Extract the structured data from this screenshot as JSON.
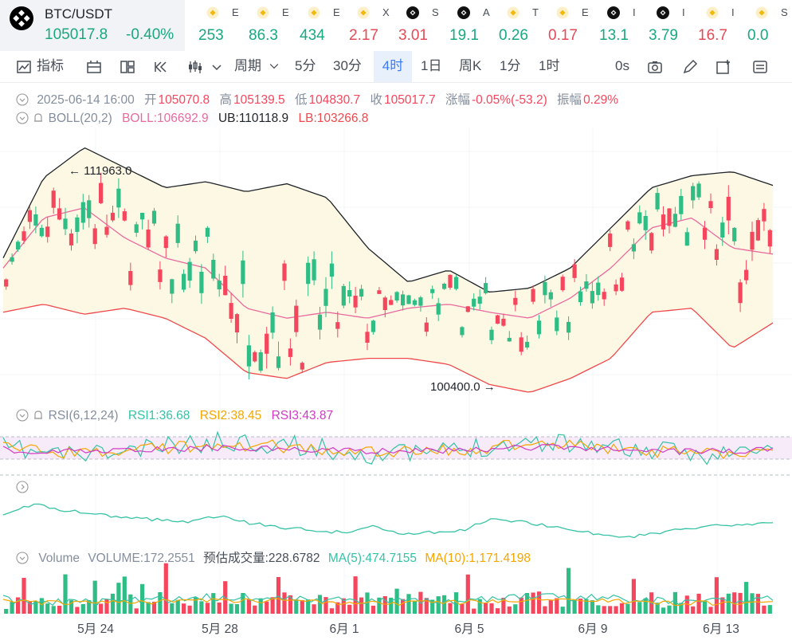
{
  "main_ticker": {
    "symbol": "BTC/USDT",
    "price": "105017.8",
    "change": "-0.40%"
  },
  "tickers": [
    {
      "icon": "bnb-coin-icon",
      "name": "E",
      "price": "253",
      "dir": "up"
    },
    {
      "icon": "bnb-coin-icon",
      "name": "E",
      "price": "86.3",
      "dir": "up"
    },
    {
      "icon": "bnb-coin-icon",
      "name": "E",
      "price": "434",
      "dir": "up"
    },
    {
      "icon": "bnb-coin-icon",
      "name": "X",
      "price": "2.17",
      "dir": "down"
    },
    {
      "icon": "binance-logo-icon",
      "name": "S",
      "price": "3.01",
      "dir": "down"
    },
    {
      "icon": "binance-logo-icon",
      "name": "A",
      "price": "19.1",
      "dir": "up"
    },
    {
      "icon": "bnb-coin-icon",
      "name": "T",
      "price": "0.26",
      "dir": "up"
    },
    {
      "icon": "bnb-coin-icon",
      "name": "E",
      "price": "0.17",
      "dir": "down"
    },
    {
      "icon": "binance-logo-icon",
      "name": "I",
      "price": "13.1",
      "dir": "up"
    },
    {
      "icon": "binance-logo-icon",
      "name": "I",
      "price": "3.79",
      "dir": "up"
    },
    {
      "icon": "bnb-coin-icon",
      "name": "I",
      "price": "16.7",
      "dir": "down"
    },
    {
      "icon": "bnb-coin-icon",
      "name": "S",
      "price": "0.0",
      "dir": "up"
    }
  ],
  "toolbar": {
    "indicators": "指标",
    "period": "周期",
    "intervals": [
      "5分",
      "30分",
      "4时",
      "1日",
      "周K",
      "1分",
      "1时"
    ],
    "active_interval": "4时",
    "countdown": "0s"
  },
  "ohlc_legend": {
    "date": "2025-06-14 16:00",
    "open_label": "开",
    "open": "105070.8",
    "high_label": "高",
    "high": "105139.5",
    "low_label": "低",
    "low": "104830.7",
    "close_label": "收",
    "close": "105017.7",
    "change_label": "涨幅",
    "change": "-0.05%(-53.2)",
    "amplitude_label": "振幅",
    "amplitude": "0.29%"
  },
  "boll_legend": {
    "name": "BOLL(20,2)",
    "boll": "BOLL:106692.9",
    "ub": "UB:110118.9",
    "lb": "LB:103266.8"
  },
  "rsi_legend": {
    "name": "RSI(6,12,24)",
    "rsi1": "RSI1:36.68",
    "rsi2": "RSI2:38.45",
    "rsi3": "RSI3:43.87"
  },
  "volume_legend": {
    "name": "Volume",
    "volume": "VOLUME:172.2551",
    "estimate": "预估成交量:228.6782",
    "ma5": "MA(5):474.7155",
    "ma10": "MA(10):1,171.4198"
  },
  "colors": {
    "up": "#2ebd85",
    "down": "#f6465d",
    "ub": "#1e2329",
    "mid": "#e86a9e",
    "lb": "#f0484c",
    "band": "#fdf8e3",
    "rsi1": "#35c2a5",
    "rsi2": "#f7a600",
    "rsi3": "#d13ac4",
    "rsi_band": "#f7ebfa"
  },
  "chart_data": {
    "type": "candlestick",
    "x_labels": [
      "5月 24",
      "5月 28",
      "6月 1",
      "6月 5",
      "6月 9",
      "6月 13"
    ],
    "annotations": {
      "high_marker": "111963.0",
      "low_marker": "100400.0"
    },
    "price_range_estimate": [
      99500,
      113000
    ],
    "candle_count": 130,
    "series": [
      {
        "name": "BOLL",
        "approx_values": [
          106000,
          108500,
          109000,
          107500,
          106500,
          106000,
          104000,
          103500,
          103800,
          103500,
          104000,
          104200,
          103800,
          103500,
          104500,
          106000,
          108000,
          108500,
          107000,
          106692.9
        ]
      },
      {
        "name": "UB",
        "approx_values": [
          106500,
          110500,
          112000,
          111000,
          110000,
          110300,
          109800,
          110200,
          109500,
          107000,
          105300,
          105900,
          104800,
          105000,
          106000,
          108000,
          110000,
          110600,
          110800,
          110118.9
        ]
      },
      {
        "name": "LB",
        "approx_values": [
          103800,
          104200,
          103700,
          104000,
          103500,
          102500,
          100800,
          100500,
          101300,
          101500,
          101500,
          101200,
          100200,
          99800,
          100500,
          101500,
          103800,
          104000,
          102000,
          103266.8
        ]
      }
    ]
  }
}
